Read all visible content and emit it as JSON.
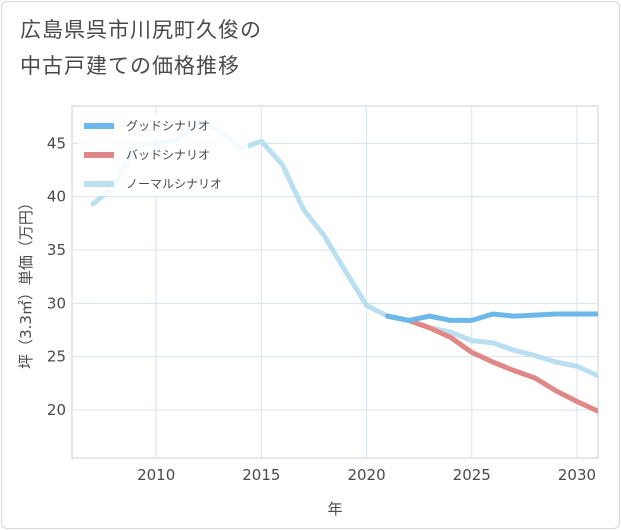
{
  "title_lines": [
    "広島県呉市川尻町久俊の",
    "中古戸建ての価格推移"
  ],
  "chart_data": {
    "type": "line",
    "xlabel": "年",
    "ylabel": "坪（3.3㎡）単価（万円）",
    "xlim": [
      2006,
      2031
    ],
    "ylim": [
      15.5,
      48.5
    ],
    "xticks": [
      2010,
      2015,
      2020,
      2025,
      2030
    ],
    "yticks": [
      20,
      25,
      30,
      35,
      40,
      45
    ],
    "legend_position": "top-left",
    "series": [
      {
        "name": "グッドシナリオ",
        "color": "#6cb8ea",
        "x": [
          2021,
          2022,
          2023,
          2024,
          2025,
          2026,
          2027,
          2028,
          2029,
          2030,
          2031
        ],
        "values": [
          28.8,
          28.4,
          28.8,
          28.4,
          28.4,
          29.0,
          28.8,
          28.9,
          29.0,
          29.0,
          29.0
        ]
      },
      {
        "name": "バッドシナリオ",
        "color": "#e08888",
        "x": [
          2021,
          2022,
          2023,
          2024,
          2025,
          2026,
          2027,
          2028,
          2029,
          2030,
          2031
        ],
        "values": [
          28.8,
          28.4,
          27.7,
          26.8,
          25.4,
          24.5,
          23.7,
          23.0,
          21.8,
          20.8,
          19.9
        ]
      },
      {
        "name": "ノーマルシナリオ",
        "color": "#b9dff0",
        "x": [
          2007,
          2008,
          2009,
          2010,
          2011,
          2012,
          2013,
          2014,
          2015,
          2016,
          2017,
          2018,
          2019,
          2020,
          2021,
          2022,
          2023,
          2024,
          2025,
          2026,
          2027,
          2028,
          2029,
          2030,
          2031
        ],
        "values": [
          39.3,
          41.0,
          44.8,
          45.0,
          45.3,
          47.0,
          46.2,
          44.5,
          45.2,
          43.0,
          38.8,
          36.3,
          33.0,
          29.8,
          28.8,
          28.4,
          27.7,
          27.3,
          26.5,
          26.3,
          25.6,
          25.1,
          24.5,
          24.1,
          23.2
        ]
      }
    ]
  }
}
